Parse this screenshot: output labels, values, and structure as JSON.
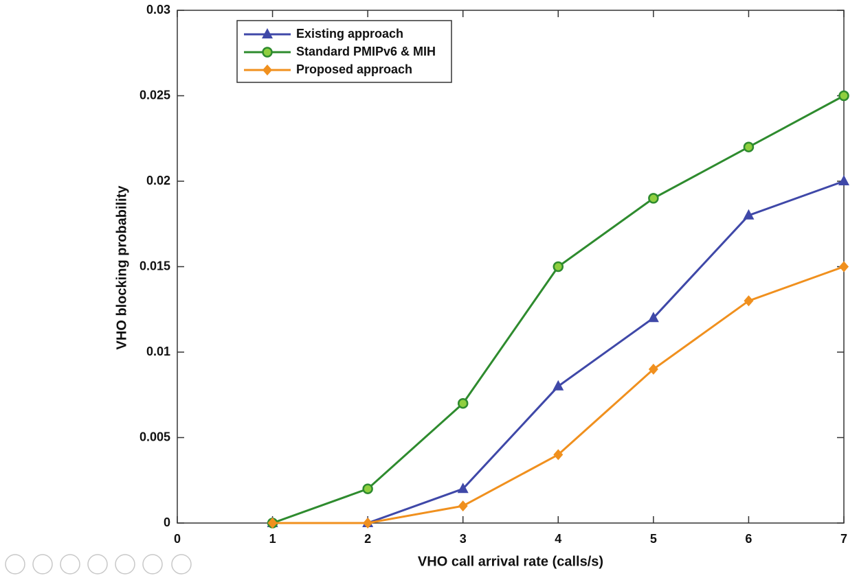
{
  "chart_data": {
    "type": "line",
    "xlabel": "VHO call arrival rate (calls/s)",
    "ylabel": "VHO blocking probability",
    "x": [
      1,
      2,
      3,
      4,
      5,
      6,
      7
    ],
    "series": [
      {
        "name": "Existing approach",
        "color": "#3f48a8",
        "marker": "triangle",
        "values": [
          0,
          0,
          0.002,
          0.008,
          0.012,
          0.018,
          0.02
        ]
      },
      {
        "name": "Standard PMIPv6 & MIH",
        "color": "#2e8b2e",
        "marker": "circle",
        "values": [
          0,
          0.002,
          0.007,
          0.015,
          0.019,
          0.022,
          0.025
        ]
      },
      {
        "name": "Proposed approach",
        "color": "#f0901e",
        "marker": "diamond",
        "values": [
          0,
          0,
          0.001,
          0.004,
          0.009,
          0.013,
          0.015
        ]
      }
    ],
    "xlim": [
      0,
      7
    ],
    "xticks": [
      0,
      1,
      2,
      3,
      4,
      5,
      6,
      7
    ],
    "ylim": [
      0,
      0.03
    ],
    "yticks": [
      0,
      0.005,
      0.01,
      0.015,
      0.02,
      0.025,
      0.03
    ],
    "grid": false,
    "legend": "upper left"
  }
}
